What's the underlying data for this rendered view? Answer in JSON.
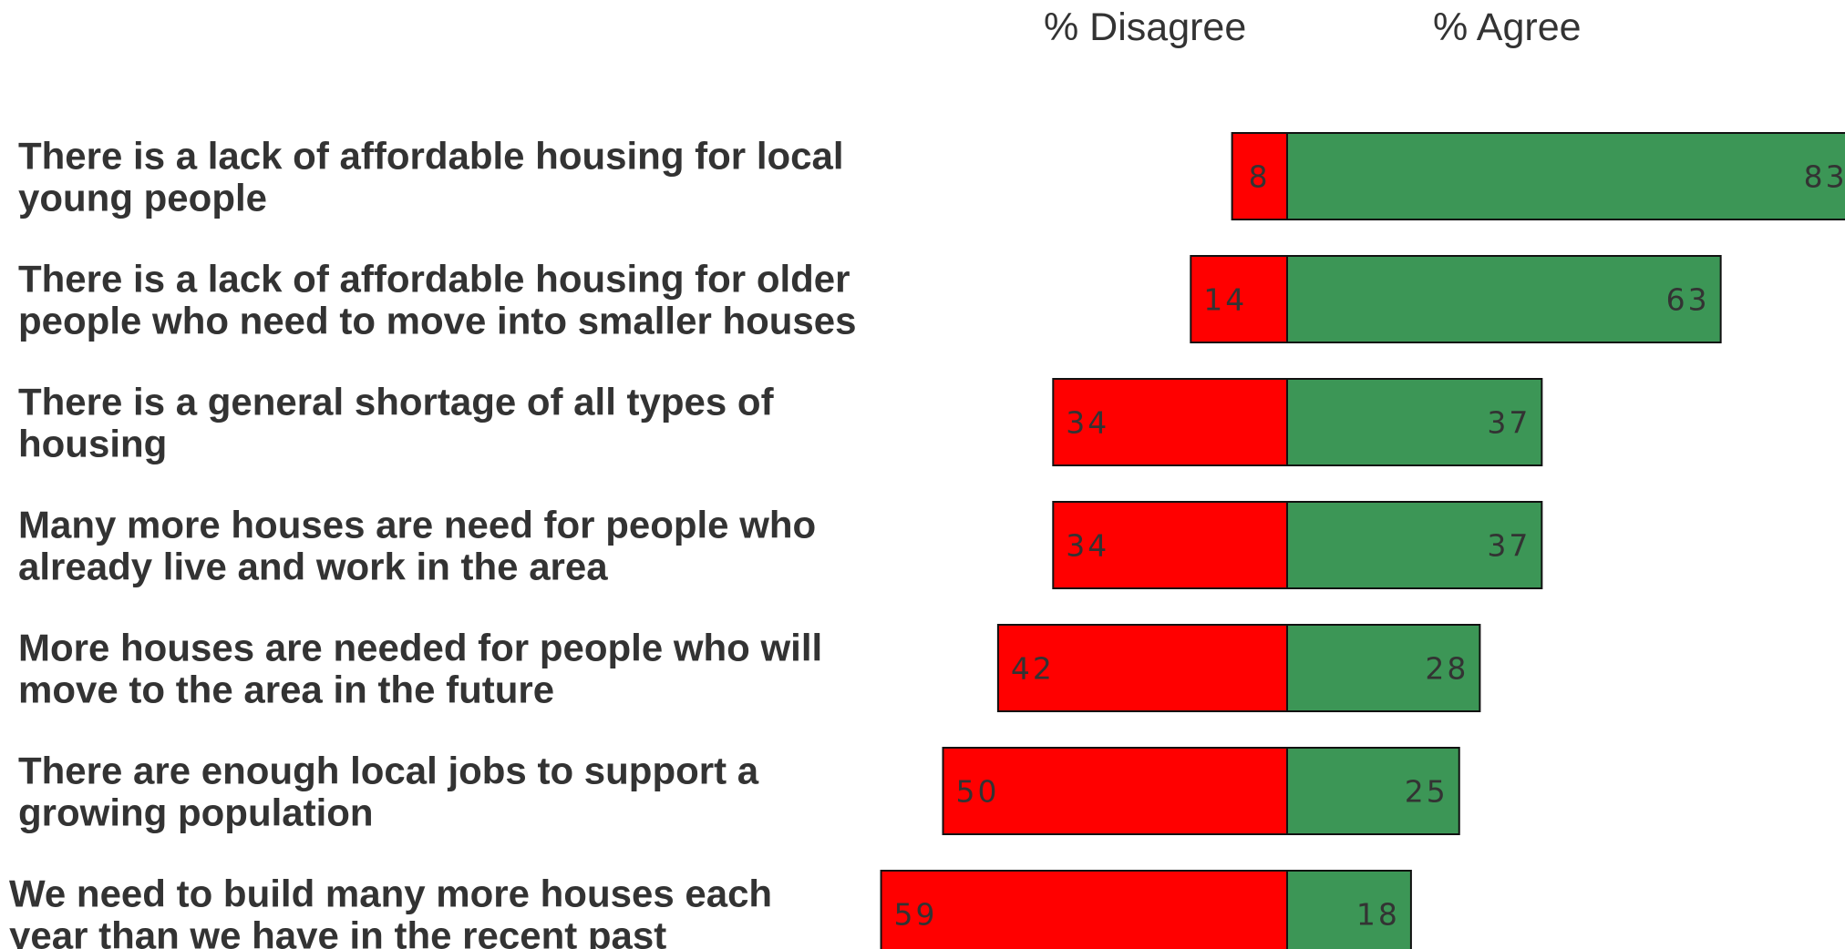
{
  "chart_data": {
    "type": "bar",
    "orientation": "horizontal-diverging",
    "title": "",
    "legend": [
      "% Disagree",
      "% Agree"
    ],
    "categories": [
      [
        "There is a lack of affordable housing for local",
        "young people"
      ],
      [
        "There is a lack of affordable housing for older",
        "people who need to move into smaller houses"
      ],
      [
        "There is a general shortage of all types of",
        "housing"
      ],
      [
        "Many more houses are need for people who",
        "already live and work in the area"
      ],
      [
        "More houses are needed for people who will",
        "move to the area in the future"
      ],
      [
        "There are enough local jobs to support a",
        "growing population"
      ],
      [
        "We need to build many more houses each",
        "year than we have in the recent past"
      ]
    ],
    "series": [
      {
        "name": "% Disagree",
        "color": "#ff0000",
        "values": [
          8,
          14,
          34,
          34,
          42,
          50,
          59
        ]
      },
      {
        "name": "% Agree",
        "color": "#3c9656",
        "values": [
          83,
          63,
          37,
          37,
          28,
          25,
          18
        ]
      }
    ]
  }
}
